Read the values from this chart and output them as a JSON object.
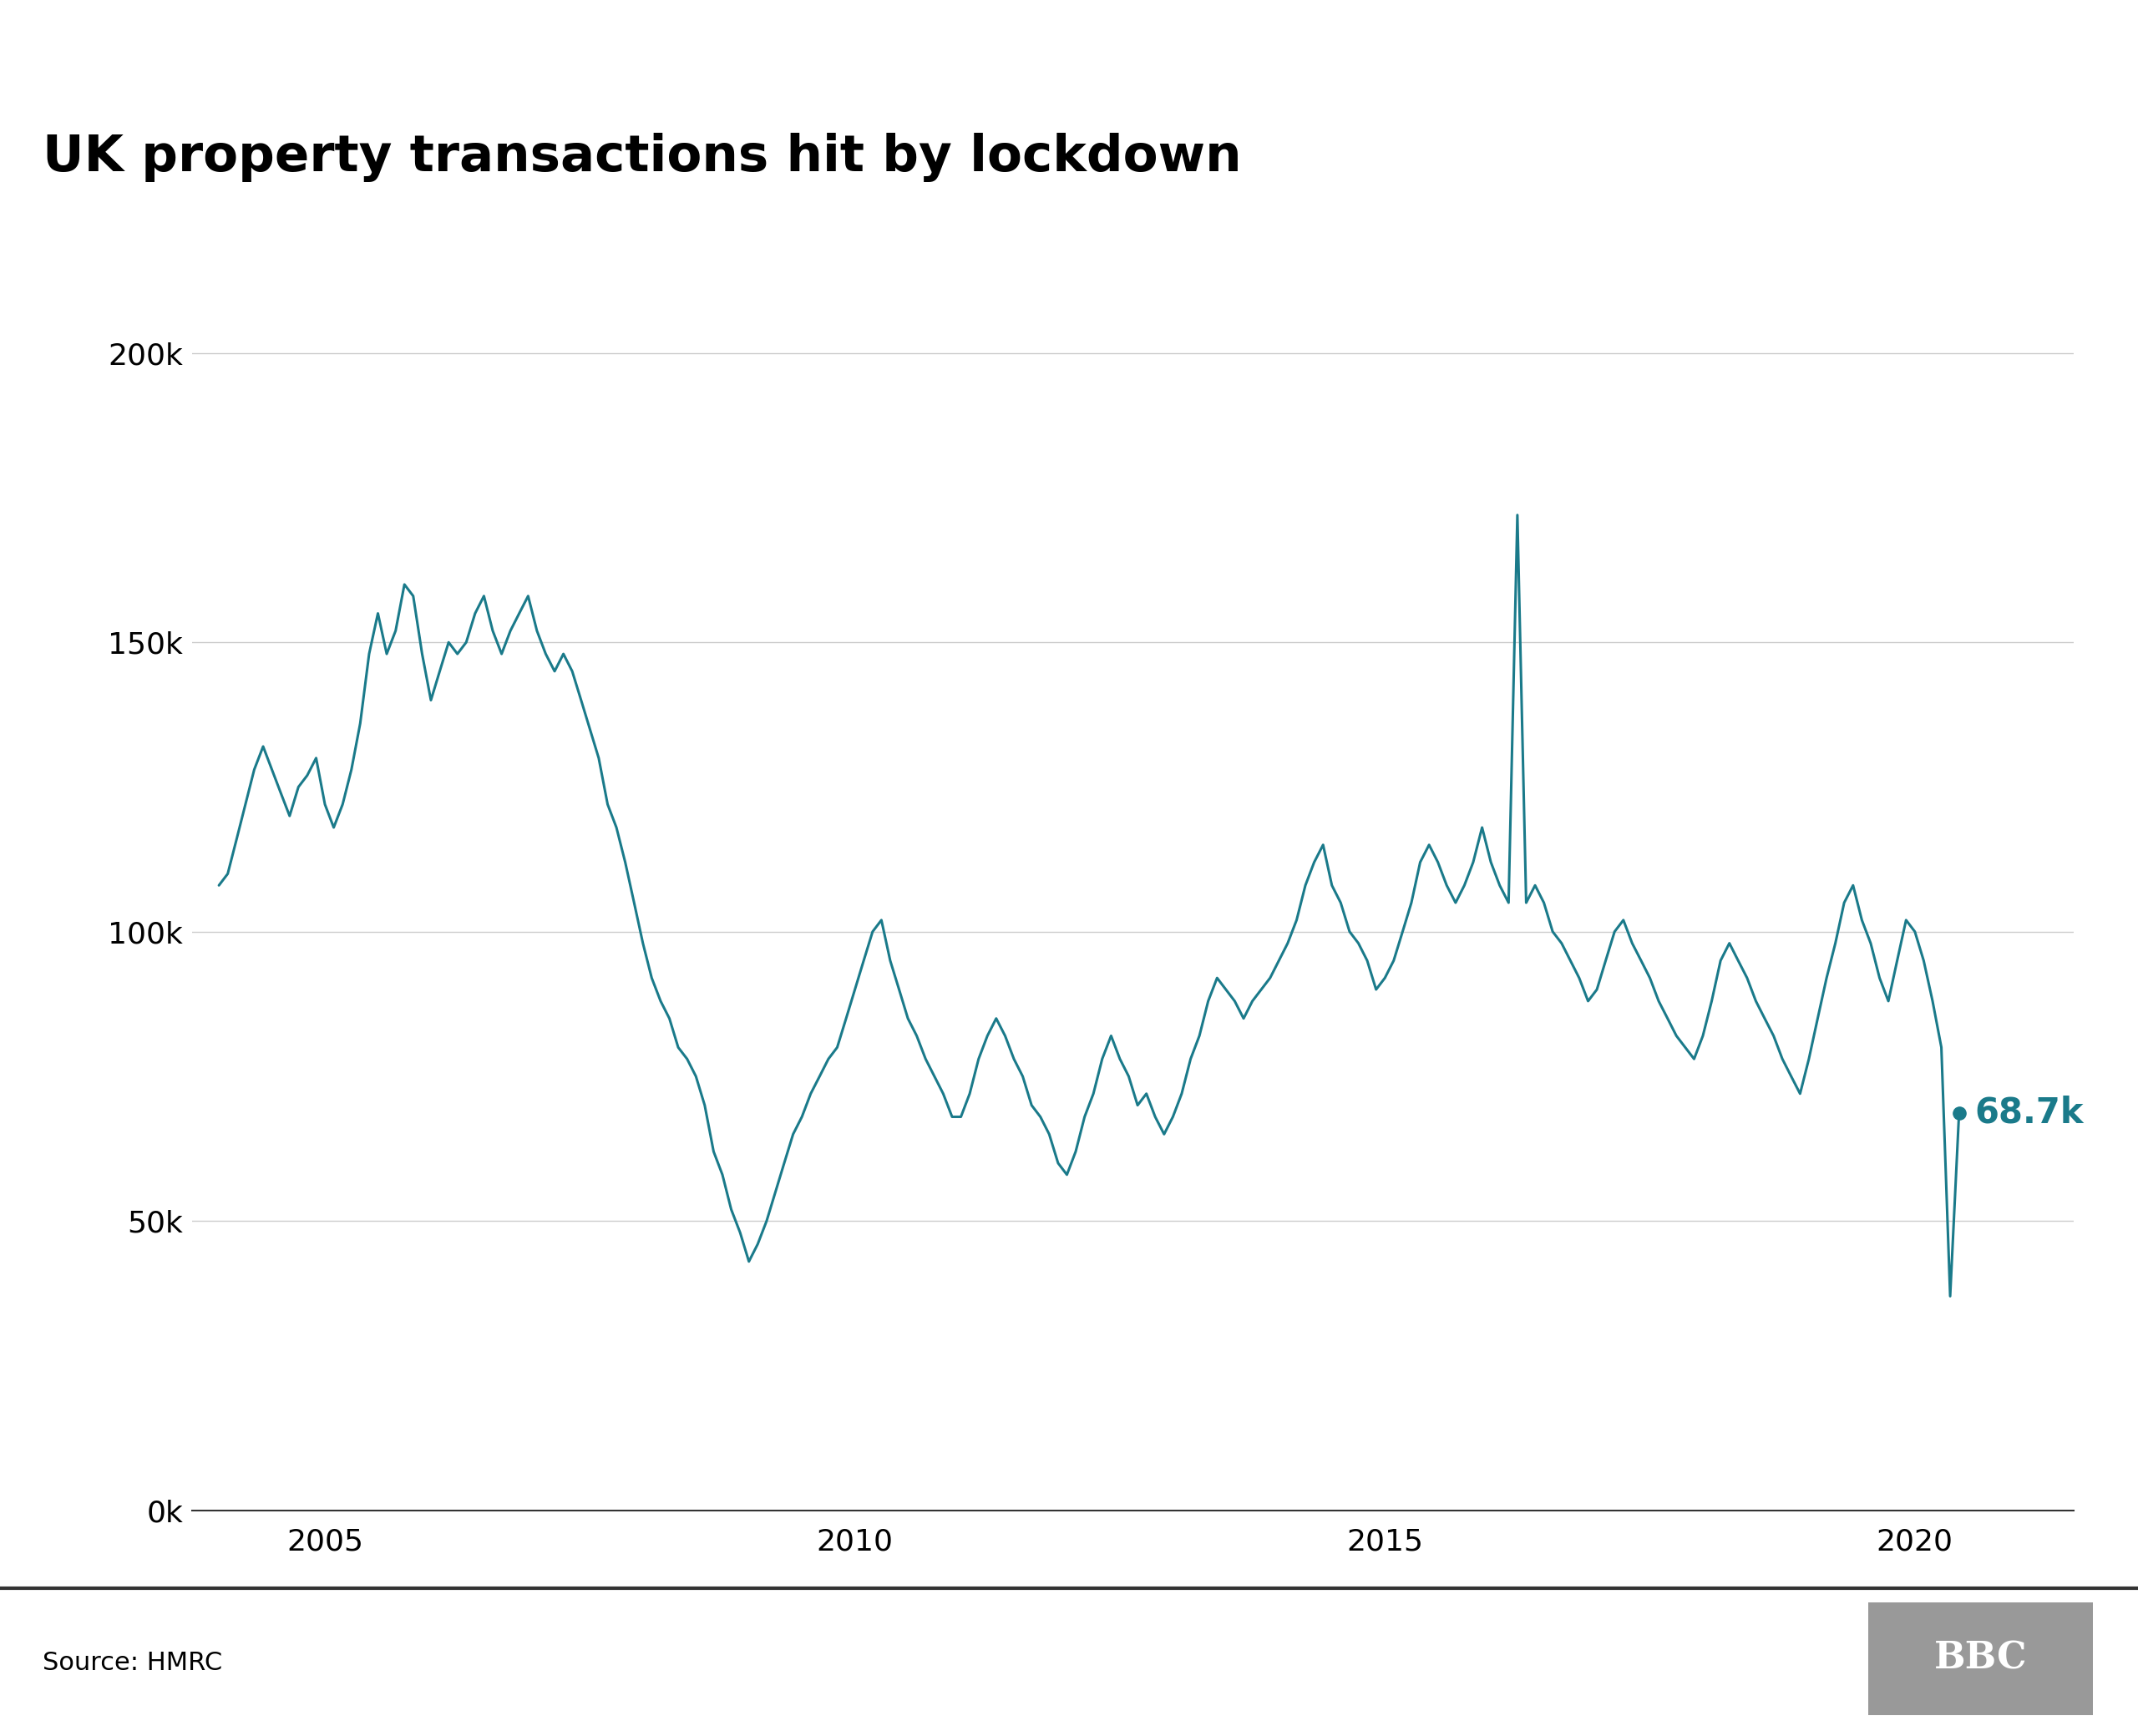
{
  "title": "UK property transactions hit by lockdown",
  "source": "Source: HMRC",
  "line_color": "#1a7a8a",
  "background_color": "#ffffff",
  "annotation_dot_color": "#1a7a8a",
  "annotation_text": "68.7k",
  "annotation_value": 68700,
  "yticks": [
    0,
    50000,
    100000,
    150000,
    200000
  ],
  "xtick_years": [
    2005,
    2010,
    2015,
    2020
  ],
  "ylim_top": 210000,
  "xlim_start": 2003.75,
  "xlim_end": 2021.5,
  "data": [
    [
      2004.0,
      108000
    ],
    [
      2004.083,
      110000
    ],
    [
      2004.167,
      116000
    ],
    [
      2004.25,
      122000
    ],
    [
      2004.333,
      128000
    ],
    [
      2004.417,
      132000
    ],
    [
      2004.5,
      128000
    ],
    [
      2004.583,
      124000
    ],
    [
      2004.667,
      120000
    ],
    [
      2004.75,
      125000
    ],
    [
      2004.833,
      127000
    ],
    [
      2004.917,
      130000
    ],
    [
      2005.0,
      122000
    ],
    [
      2005.083,
      118000
    ],
    [
      2005.167,
      122000
    ],
    [
      2005.25,
      128000
    ],
    [
      2005.333,
      136000
    ],
    [
      2005.417,
      148000
    ],
    [
      2005.5,
      155000
    ],
    [
      2005.583,
      148000
    ],
    [
      2005.667,
      152000
    ],
    [
      2005.75,
      160000
    ],
    [
      2005.833,
      158000
    ],
    [
      2005.917,
      148000
    ],
    [
      2006.0,
      140000
    ],
    [
      2006.083,
      145000
    ],
    [
      2006.167,
      150000
    ],
    [
      2006.25,
      148000
    ],
    [
      2006.333,
      150000
    ],
    [
      2006.417,
      155000
    ],
    [
      2006.5,
      158000
    ],
    [
      2006.583,
      152000
    ],
    [
      2006.667,
      148000
    ],
    [
      2006.75,
      152000
    ],
    [
      2006.833,
      155000
    ],
    [
      2006.917,
      158000
    ],
    [
      2007.0,
      152000
    ],
    [
      2007.083,
      148000
    ],
    [
      2007.167,
      145000
    ],
    [
      2007.25,
      148000
    ],
    [
      2007.333,
      145000
    ],
    [
      2007.417,
      140000
    ],
    [
      2007.5,
      135000
    ],
    [
      2007.583,
      130000
    ],
    [
      2007.667,
      122000
    ],
    [
      2007.75,
      118000
    ],
    [
      2007.833,
      112000
    ],
    [
      2007.917,
      105000
    ],
    [
      2008.0,
      98000
    ],
    [
      2008.083,
      92000
    ],
    [
      2008.167,
      88000
    ],
    [
      2008.25,
      85000
    ],
    [
      2008.333,
      80000
    ],
    [
      2008.417,
      78000
    ],
    [
      2008.5,
      75000
    ],
    [
      2008.583,
      70000
    ],
    [
      2008.667,
      62000
    ],
    [
      2008.75,
      58000
    ],
    [
      2008.833,
      52000
    ],
    [
      2008.917,
      48000
    ],
    [
      2009.0,
      43000
    ],
    [
      2009.083,
      46000
    ],
    [
      2009.167,
      50000
    ],
    [
      2009.25,
      55000
    ],
    [
      2009.333,
      60000
    ],
    [
      2009.417,
      65000
    ],
    [
      2009.5,
      68000
    ],
    [
      2009.583,
      72000
    ],
    [
      2009.667,
      75000
    ],
    [
      2009.75,
      78000
    ],
    [
      2009.833,
      80000
    ],
    [
      2009.917,
      85000
    ],
    [
      2010.0,
      90000
    ],
    [
      2010.083,
      95000
    ],
    [
      2010.167,
      100000
    ],
    [
      2010.25,
      102000
    ],
    [
      2010.333,
      95000
    ],
    [
      2010.417,
      90000
    ],
    [
      2010.5,
      85000
    ],
    [
      2010.583,
      82000
    ],
    [
      2010.667,
      78000
    ],
    [
      2010.75,
      75000
    ],
    [
      2010.833,
      72000
    ],
    [
      2010.917,
      68000
    ],
    [
      2011.0,
      68000
    ],
    [
      2011.083,
      72000
    ],
    [
      2011.167,
      78000
    ],
    [
      2011.25,
      82000
    ],
    [
      2011.333,
      85000
    ],
    [
      2011.417,
      82000
    ],
    [
      2011.5,
      78000
    ],
    [
      2011.583,
      75000
    ],
    [
      2011.667,
      70000
    ],
    [
      2011.75,
      68000
    ],
    [
      2011.833,
      65000
    ],
    [
      2011.917,
      60000
    ],
    [
      2012.0,
      58000
    ],
    [
      2012.083,
      62000
    ],
    [
      2012.167,
      68000
    ],
    [
      2012.25,
      72000
    ],
    [
      2012.333,
      78000
    ],
    [
      2012.417,
      82000
    ],
    [
      2012.5,
      78000
    ],
    [
      2012.583,
      75000
    ],
    [
      2012.667,
      70000
    ],
    [
      2012.75,
      72000
    ],
    [
      2012.833,
      68000
    ],
    [
      2012.917,
      65000
    ],
    [
      2013.0,
      68000
    ],
    [
      2013.083,
      72000
    ],
    [
      2013.167,
      78000
    ],
    [
      2013.25,
      82000
    ],
    [
      2013.333,
      88000
    ],
    [
      2013.417,
      92000
    ],
    [
      2013.5,
      90000
    ],
    [
      2013.583,
      88000
    ],
    [
      2013.667,
      85000
    ],
    [
      2013.75,
      88000
    ],
    [
      2013.833,
      90000
    ],
    [
      2013.917,
      92000
    ],
    [
      2014.0,
      95000
    ],
    [
      2014.083,
      98000
    ],
    [
      2014.167,
      102000
    ],
    [
      2014.25,
      108000
    ],
    [
      2014.333,
      112000
    ],
    [
      2014.417,
      115000
    ],
    [
      2014.5,
      108000
    ],
    [
      2014.583,
      105000
    ],
    [
      2014.667,
      100000
    ],
    [
      2014.75,
      98000
    ],
    [
      2014.833,
      95000
    ],
    [
      2014.917,
      90000
    ],
    [
      2015.0,
      92000
    ],
    [
      2015.083,
      95000
    ],
    [
      2015.167,
      100000
    ],
    [
      2015.25,
      105000
    ],
    [
      2015.333,
      112000
    ],
    [
      2015.417,
      115000
    ],
    [
      2015.5,
      112000
    ],
    [
      2015.583,
      108000
    ],
    [
      2015.667,
      105000
    ],
    [
      2015.75,
      108000
    ],
    [
      2015.833,
      112000
    ],
    [
      2015.917,
      118000
    ],
    [
      2016.0,
      112000
    ],
    [
      2016.083,
      108000
    ],
    [
      2016.167,
      105000
    ],
    [
      2016.25,
      172000
    ],
    [
      2016.333,
      105000
    ],
    [
      2016.417,
      108000
    ],
    [
      2016.5,
      105000
    ],
    [
      2016.583,
      100000
    ],
    [
      2016.667,
      98000
    ],
    [
      2016.75,
      95000
    ],
    [
      2016.833,
      92000
    ],
    [
      2016.917,
      88000
    ],
    [
      2017.0,
      90000
    ],
    [
      2017.083,
      95000
    ],
    [
      2017.167,
      100000
    ],
    [
      2017.25,
      102000
    ],
    [
      2017.333,
      98000
    ],
    [
      2017.417,
      95000
    ],
    [
      2017.5,
      92000
    ],
    [
      2017.583,
      88000
    ],
    [
      2017.667,
      85000
    ],
    [
      2017.75,
      82000
    ],
    [
      2017.833,
      80000
    ],
    [
      2017.917,
      78000
    ],
    [
      2018.0,
      82000
    ],
    [
      2018.083,
      88000
    ],
    [
      2018.167,
      95000
    ],
    [
      2018.25,
      98000
    ],
    [
      2018.333,
      95000
    ],
    [
      2018.417,
      92000
    ],
    [
      2018.5,
      88000
    ],
    [
      2018.583,
      85000
    ],
    [
      2018.667,
      82000
    ],
    [
      2018.75,
      78000
    ],
    [
      2018.833,
      75000
    ],
    [
      2018.917,
      72000
    ],
    [
      2019.0,
      78000
    ],
    [
      2019.083,
      85000
    ],
    [
      2019.167,
      92000
    ],
    [
      2019.25,
      98000
    ],
    [
      2019.333,
      105000
    ],
    [
      2019.417,
      108000
    ],
    [
      2019.5,
      102000
    ],
    [
      2019.583,
      98000
    ],
    [
      2019.667,
      92000
    ],
    [
      2019.75,
      88000
    ],
    [
      2019.833,
      95000
    ],
    [
      2019.917,
      102000
    ],
    [
      2020.0,
      100000
    ],
    [
      2020.083,
      95000
    ],
    [
      2020.167,
      88000
    ],
    [
      2020.25,
      80000
    ],
    [
      2020.333,
      37000
    ],
    [
      2020.417,
      68700
    ]
  ],
  "title_fontsize": 44,
  "tick_fontsize": 26,
  "source_fontsize": 22,
  "annotation_fontsize": 30
}
